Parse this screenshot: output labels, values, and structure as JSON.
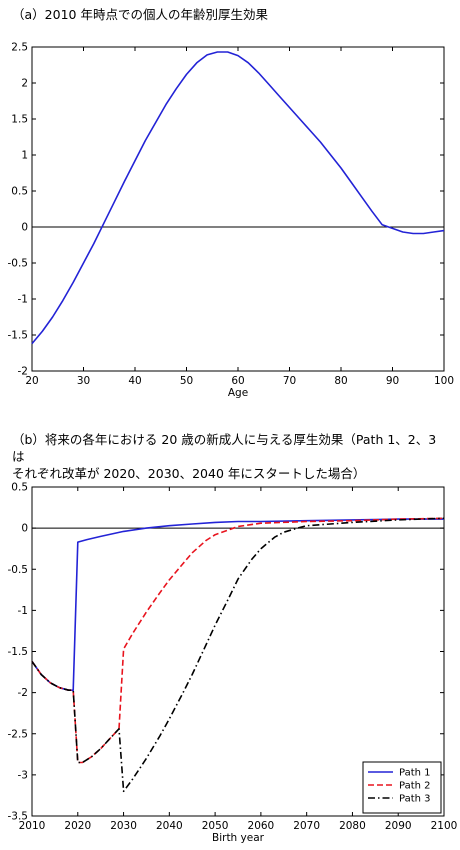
{
  "captions": {
    "a": "（a）2010 年時点での個人の年齢別厚生効果",
    "b_line1": "（b）将来の各年における 20 歳の新成人に与える厚生効果（Path 1、2、3 は",
    "b_line2": "それぞれ改革が 2020、2030、2040 年にスタートした場合）"
  },
  "chart_data": [
    {
      "type": "line",
      "title": "（a）2010 年時点での個人の年齢別厚生効果",
      "xlabel": "Age",
      "ylabel": "",
      "xlim": [
        20,
        100
      ],
      "ylim": [
        -2,
        2.5
      ],
      "xticks": [
        20,
        30,
        40,
        50,
        60,
        70,
        80,
        90,
        100
      ],
      "yticks": [
        -2,
        -1.5,
        -1,
        -0.5,
        0,
        0.5,
        1,
        1.5,
        2,
        2.5
      ],
      "grid": false,
      "zero_line": true,
      "series": [
        {
          "color": "#2323d6",
          "dash": "solid",
          "x": [
            20,
            22,
            24,
            26,
            28,
            30,
            32,
            34,
            36,
            38,
            40,
            42,
            44,
            46,
            48,
            50,
            52,
            54,
            56,
            58,
            60,
            62,
            64,
            66,
            68,
            70,
            72,
            74,
            76,
            78,
            80,
            82,
            84,
            86,
            88,
            90,
            92,
            94,
            96,
            98,
            100
          ],
          "y": [
            -1.62,
            -1.45,
            -1.25,
            -1.02,
            -0.77,
            -0.5,
            -0.23,
            0.06,
            0.35,
            0.64,
            0.92,
            1.2,
            1.45,
            1.7,
            1.92,
            2.12,
            2.28,
            2.39,
            2.43,
            2.43,
            2.38,
            2.28,
            2.14,
            1.98,
            1.82,
            1.66,
            1.5,
            1.34,
            1.18,
            1.0,
            0.82,
            0.62,
            0.42,
            0.22,
            0.03,
            -0.02,
            -0.07,
            -0.09,
            -0.09,
            -0.07,
            -0.05
          ]
        }
      ]
    },
    {
      "type": "line",
      "title": "（b）将来の各年における 20 歳の新成人に与える厚生効果（Path 1、2、3 は それぞれ改革が 2020、2030、2040 年にスタートした場合）",
      "xlabel": "Birth year",
      "ylabel": "",
      "xlim": [
        2010,
        2100
      ],
      "ylim": [
        -3.5,
        0.5
      ],
      "xticks": [
        2010,
        2020,
        2030,
        2040,
        2050,
        2060,
        2070,
        2080,
        2090,
        2100
      ],
      "yticks": [
        -3.5,
        -3,
        -2.5,
        -2,
        -1.5,
        -1,
        -0.5,
        0,
        0.5
      ],
      "grid": false,
      "zero_line": true,
      "legend": "bottom-right",
      "series": [
        {
          "name": "Path 1",
          "color": "#2323d6",
          "dash": "solid",
          "x": [
            2010,
            2012,
            2014,
            2016,
            2018,
            2019,
            2020,
            2022,
            2025,
            2030,
            2035,
            2040,
            2045,
            2050,
            2055,
            2060,
            2070,
            2080,
            2090,
            2100
          ],
          "y": [
            -1.62,
            -1.78,
            -1.88,
            -1.94,
            -1.97,
            -1.97,
            -0.17,
            -0.14,
            -0.1,
            -0.04,
            0.0,
            0.03,
            0.05,
            0.07,
            0.08,
            0.08,
            0.09,
            0.1,
            0.11,
            0.11
          ]
        },
        {
          "name": "Path 2",
          "color": "#e8141e",
          "dash": "dashed",
          "x": [
            2010,
            2012,
            2014,
            2016,
            2018,
            2019,
            2020,
            2021,
            2023,
            2025,
            2027,
            2029,
            2030,
            2032,
            2035,
            2038,
            2040,
            2043,
            2045,
            2048,
            2050,
            2053,
            2055,
            2060,
            2070,
            2080,
            2090,
            2100
          ],
          "y": [
            -1.62,
            -1.78,
            -1.88,
            -1.94,
            -1.97,
            -1.97,
            -2.85,
            -2.85,
            -2.78,
            -2.68,
            -2.56,
            -2.44,
            -1.47,
            -1.28,
            -1.02,
            -0.78,
            -0.63,
            -0.43,
            -0.3,
            -0.15,
            -0.08,
            -0.02,
            0.02,
            0.06,
            0.08,
            0.09,
            0.11,
            0.12
          ]
        },
        {
          "name": "Path 3",
          "color": "#000000",
          "dash": "dashdot",
          "x": [
            2010,
            2012,
            2014,
            2016,
            2018,
            2019,
            2020,
            2021,
            2023,
            2025,
            2027,
            2029,
            2030,
            2032,
            2035,
            2038,
            2040,
            2043,
            2045,
            2048,
            2050,
            2053,
            2055,
            2058,
            2060,
            2063,
            2065,
            2068,
            2070,
            2080,
            2090,
            2100
          ],
          "y": [
            -1.62,
            -1.78,
            -1.88,
            -1.94,
            -1.97,
            -1.97,
            -2.85,
            -2.85,
            -2.78,
            -2.68,
            -2.56,
            -2.44,
            -3.2,
            -3.05,
            -2.8,
            -2.52,
            -2.32,
            -2.0,
            -1.78,
            -1.42,
            -1.18,
            -0.85,
            -0.62,
            -0.38,
            -0.25,
            -0.11,
            -0.05,
            0.0,
            0.03,
            0.07,
            0.1,
            0.12
          ]
        }
      ]
    }
  ]
}
